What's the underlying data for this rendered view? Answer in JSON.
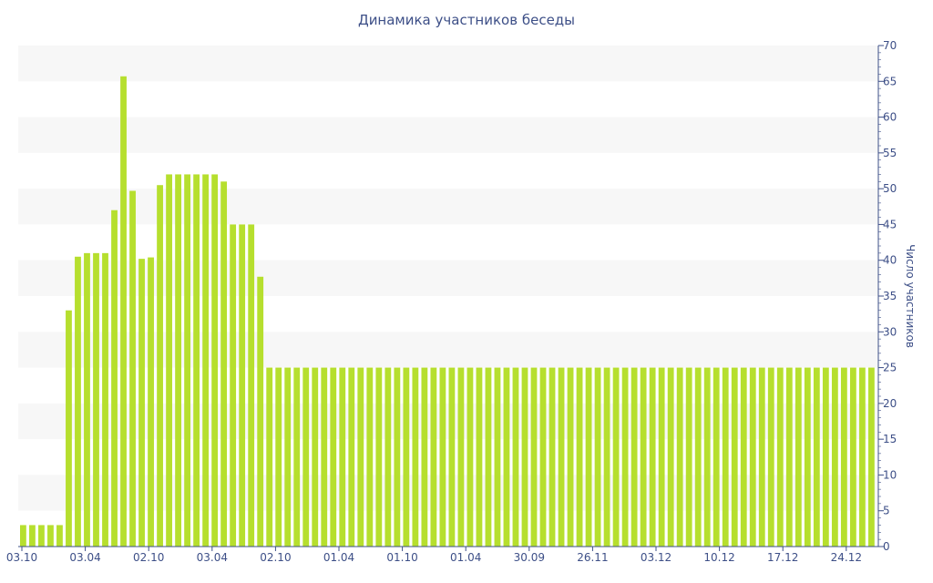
{
  "colors": {
    "bar": "#b6df2e",
    "band": "#f7f7f7",
    "axis": "#3d4f87",
    "text": "#3d4f87"
  },
  "chart_data": {
    "type": "bar",
    "title": "Динамика участников беседы",
    "xlabel": "",
    "ylabel": "Число участников",
    "ylim": [
      0,
      70
    ],
    "y_ticks": [
      0,
      5,
      10,
      15,
      20,
      25,
      30,
      35,
      40,
      45,
      50,
      55,
      60,
      65,
      70
    ],
    "y_axis_side": "right",
    "grid": "alternating bands",
    "x_tick_labels": [
      "03.10",
      "03.04",
      "02.10",
      "03.04",
      "02.10",
      "01.04",
      "01.10",
      "01.04",
      "30.09",
      "26.11",
      "03.12",
      "10.12",
      "17.12",
      "24.12"
    ],
    "values": [
      3,
      3,
      3,
      3,
      3,
      33,
      40.5,
      41,
      41,
      41,
      47,
      65.7,
      49.7,
      40.2,
      40.4,
      50.5,
      52,
      52,
      52,
      52,
      52,
      52,
      51,
      45,
      45,
      45,
      37.7,
      25,
      25,
      25,
      25,
      25,
      25,
      25,
      25,
      25,
      25,
      25,
      25,
      25,
      25,
      25,
      25,
      25,
      25,
      25,
      25,
      25,
      25,
      25,
      25,
      25,
      25,
      25,
      25,
      25,
      25,
      25,
      25,
      25,
      25,
      25,
      25,
      25,
      25,
      25,
      25,
      25,
      25,
      25,
      25,
      25,
      25,
      25,
      25,
      25,
      25,
      25,
      25,
      25,
      25,
      25,
      25,
      25,
      25,
      25,
      25,
      25,
      25,
      25,
      25,
      25,
      25,
      25
    ]
  }
}
